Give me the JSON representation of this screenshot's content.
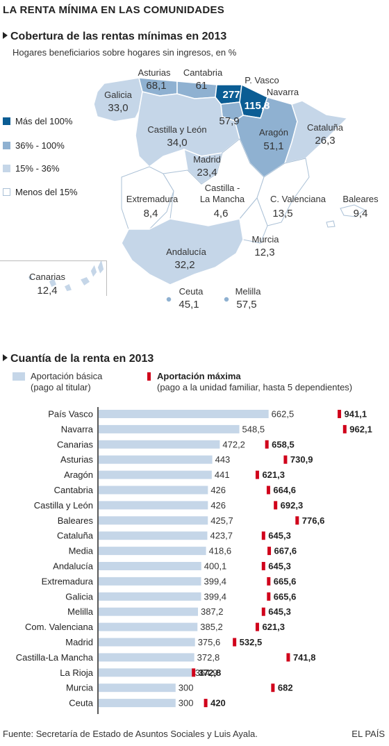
{
  "title": "LA RENTA MÍNIMA EN LAS COMUNIDADES",
  "map_section": {
    "title": "Cobertura de las rentas mínimas en 2013",
    "subtitle": "Hogares beneficiarios sobre hogares sin ingresos, en %",
    "legend": [
      {
        "label": "Más del 100%",
        "color": "#0b5d94"
      },
      {
        "label": "36% - 100%",
        "color": "#8fb1d1"
      },
      {
        "label": "15% - 36%",
        "color": "#c5d6e8"
      },
      {
        "label": "Menos del 15%",
        "color": "#ffffff"
      }
    ],
    "regions": [
      {
        "name": "Galicia",
        "value": "33,0"
      },
      {
        "name": "Asturias",
        "value": "68,1"
      },
      {
        "name": "Cantabria",
        "value": "61"
      },
      {
        "name": "P. Vasco",
        "value": "277"
      },
      {
        "name": "Navarra",
        "value": "115,8"
      },
      {
        "name": "La Rioja",
        "value": "57,9"
      },
      {
        "name": "Castilla y León",
        "value": "34,0"
      },
      {
        "name": "Aragón",
        "value": "51,1"
      },
      {
        "name": "Cataluña",
        "value": "26,3"
      },
      {
        "name": "Madrid",
        "value": "23,4"
      },
      {
        "name": "Extremadura",
        "value": "8,4"
      },
      {
        "name": "Castilla - La Mancha",
        "value": "4,6"
      },
      {
        "name": "C. Valenciana",
        "value": "13,5"
      },
      {
        "name": "Baleares",
        "value": "9,4"
      },
      {
        "name": "Murcia",
        "value": "12,3"
      },
      {
        "name": "Andalucía",
        "value": "32,2"
      },
      {
        "name": "Canarias",
        "value": "12,4"
      },
      {
        "name": "Ceuta",
        "value": "45,1"
      },
      {
        "name": "Melilla",
        "value": "57,5"
      }
    ]
  },
  "bar_section": {
    "title": "Cuantía de la renta en 2013",
    "legend_basic_1": "Aportación básica",
    "legend_basic_2": "(pago al titular)",
    "legend_max_1": "Aportación máxima",
    "legend_max_2": "(pago a la unidad familiar, hasta 5 dependientes)"
  },
  "chart_data": {
    "type": "bar",
    "categories": [
      "País Vasco",
      "Navarra",
      "Canarias",
      "Asturias",
      "Aragón",
      "Cantabria",
      "Castilla y León",
      "Baleares",
      "Cataluña",
      "Media",
      "Andalucía",
      "Extremadura",
      "Galicia",
      "Melilla",
      "Com. Valenciana",
      "Madrid",
      "Castilla-La Mancha",
      "La Rioja",
      "Murcia",
      "Ceuta"
    ],
    "series": [
      {
        "name": "Aportación básica",
        "values": [
          662.5,
          548.5,
          472.2,
          443,
          441,
          426,
          426,
          425.7,
          423.7,
          418.6,
          400.1,
          399.4,
          399.4,
          387.2,
          385.2,
          375.6,
          372.8,
          364.9,
          300,
          300
        ],
        "labels": [
          "662,5",
          "548,5",
          "472,2",
          "443",
          "441",
          "426",
          "426",
          "425,7",
          "423,7",
          "418,6",
          "400,1",
          "399,4",
          "399,4",
          "387,2",
          "385,2",
          "375,6",
          "372,8",
          "364,9",
          "300",
          "300"
        ]
      },
      {
        "name": "Aportación máxima",
        "values": [
          941.1,
          962.1,
          658.5,
          730.9,
          621.3,
          664.6,
          692.3,
          776.6,
          645.3,
          667.6,
          645.3,
          665.6,
          665.6,
          645.3,
          621.3,
          532.5,
          741.8,
          372.8,
          682,
          420
        ],
        "labels": [
          "941,1",
          "962,1",
          "658,5",
          "730,9",
          "621,3",
          "664,6",
          "692,3",
          "776,6",
          "645,3",
          "667,6",
          "645,3",
          "665,6",
          "665,6",
          "645,3",
          "621,3",
          "532,5",
          "741,8",
          "372,8",
          "682",
          "420"
        ]
      }
    ]
  },
  "footer": {
    "source": "Fuente: Secretaría de Estado de Asuntos Sociales y Luis Ayala.",
    "brand": "EL PAÍS"
  }
}
